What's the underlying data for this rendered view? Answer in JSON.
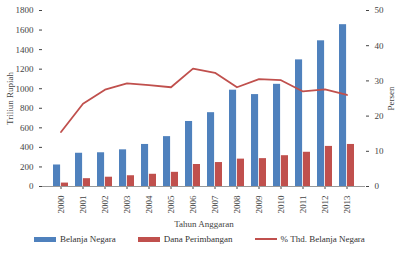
{
  "chart_data": {
    "type": "bar",
    "categories": [
      "2000",
      "2001",
      "2002",
      "2003",
      "2004",
      "2005",
      "2006",
      "2007",
      "2008",
      "2009",
      "2010",
      "2011",
      "2012",
      "2013"
    ],
    "xlabel": "Tahun Anggaran",
    "ylabel": "Triliun Rupiah",
    "y2label": "Persen",
    "ylim": [
      0,
      1800
    ],
    "yticks": [
      0,
      200,
      400,
      600,
      800,
      1000,
      1200,
      1400,
      1600,
      1800
    ],
    "y2lim": [
      0,
      50
    ],
    "y2ticks": [
      0,
      10,
      20,
      30,
      40,
      50
    ],
    "legend": "bottom",
    "series": [
      {
        "name": "Belanja Negara",
        "type": "bar",
        "color": "#4f81bd",
        "values": [
          220,
          340,
          345,
          375,
          430,
          510,
          665,
          755,
          985,
          940,
          1045,
          1295,
          1490,
          1655
        ]
      },
      {
        "name": "Dana Perimbangan",
        "type": "bar",
        "color": "#c0504d",
        "values": [
          35,
          80,
          95,
          110,
          125,
          145,
          225,
          245,
          280,
          285,
          315,
          350,
          410,
          430
        ]
      },
      {
        "name": "% Thd. Belanja Negara",
        "type": "line",
        "axis": "y2",
        "color": "#c0504d",
        "values": [
          15.5,
          23.5,
          27.5,
          29.3,
          28.8,
          28.2,
          33.5,
          32.3,
          28.2,
          30.5,
          30.2,
          27.0,
          27.6,
          26.0
        ]
      }
    ]
  }
}
